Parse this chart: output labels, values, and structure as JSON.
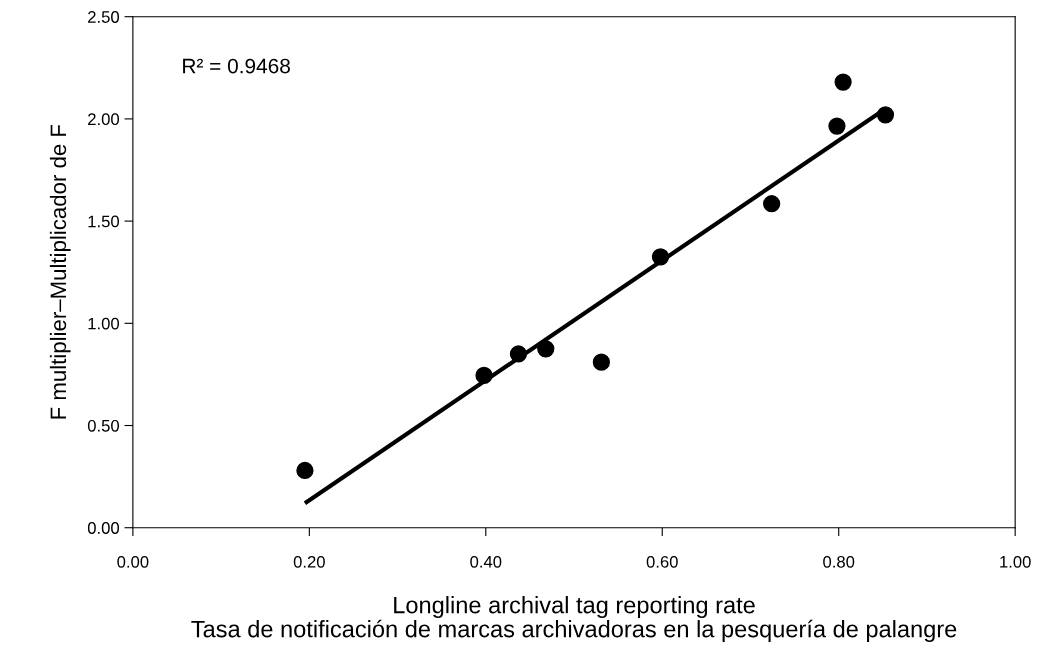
{
  "chart_data": {
    "type": "scatter",
    "xlabel": "Longline archival tag reporting rate\nTasa de notificación de marcas archivadoras en la pesquería de palangre",
    "ylabel": "F multiplier–Multiplicador de F",
    "annotations": [
      "R² = 0.9468"
    ],
    "x": [
      0.195,
      0.398,
      0.437,
      0.468,
      0.531,
      0.598,
      0.724,
      0.798,
      0.805,
      0.853
    ],
    "series": [
      {
        "color": "#000000",
        "marker": "circle",
        "values": [
          0.28,
          0.745,
          0.85,
          0.875,
          0.81,
          1.325,
          1.585,
          1.965,
          2.18,
          2.02
        ]
      },
      {
        "type": "line",
        "color": "#000000",
        "marker": "none",
        "line_style": "solid",
        "x": [
          0.195,
          0.853
        ],
        "values": [
          0.12,
          2.05
        ]
      }
    ],
    "xlim": [
      0,
      1
    ],
    "ylim": [
      0,
      2.5
    ],
    "xticks": [
      {
        "value": 0,
        "label": "0.00"
      },
      {
        "value": 0.2,
        "label": "0.20"
      },
      {
        "value": 0.4,
        "label": "0.40"
      },
      {
        "value": 0.6,
        "label": "0.60"
      },
      {
        "value": 0.8,
        "label": "0.80"
      },
      {
        "value": 1,
        "label": "1.00"
      }
    ],
    "yticks": [
      {
        "value": 0,
        "label": "0.00"
      },
      {
        "value": 0.5,
        "label": "0.50"
      },
      {
        "value": 1,
        "label": "1.00"
      },
      {
        "value": 1.5,
        "label": "1.50"
      },
      {
        "value": 2,
        "label": "2.00"
      },
      {
        "value": 2.5,
        "label": "2.50"
      }
    ],
    "grid": false,
    "legend": false
  }
}
